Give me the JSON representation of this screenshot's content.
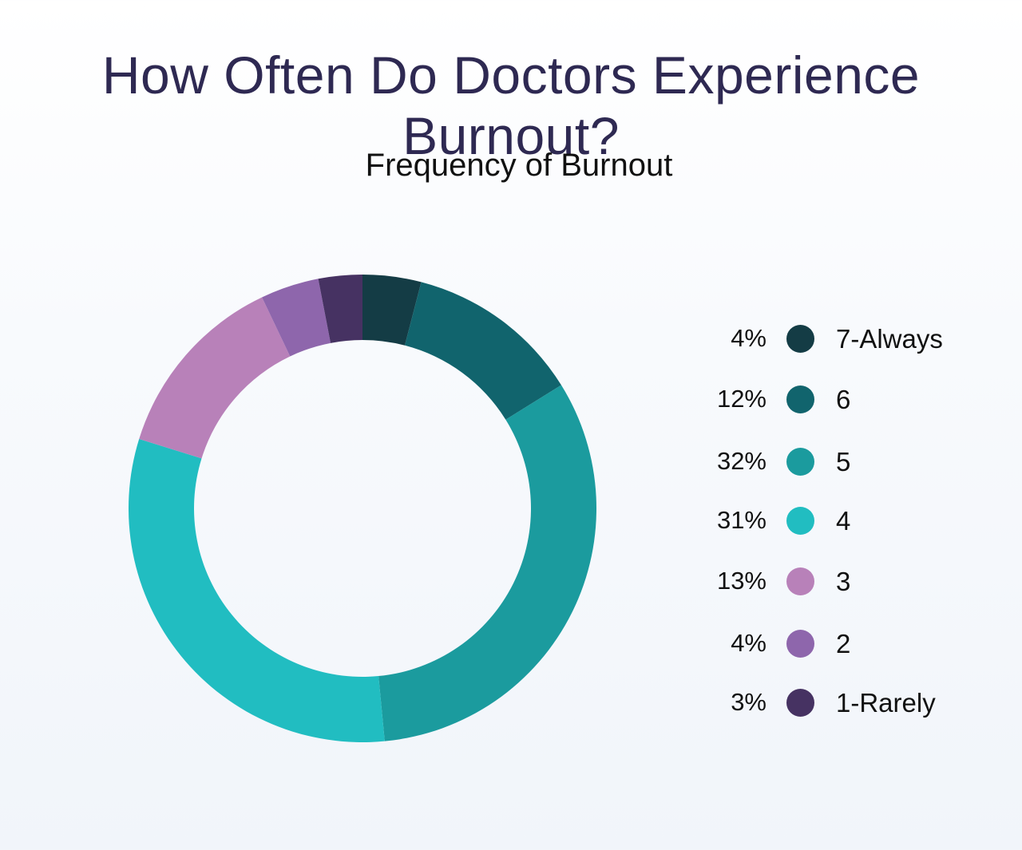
{
  "header": {
    "title": "How Often Do Doctors Experience Burnout?"
  },
  "chart_data": {
    "type": "pie",
    "variant": "donut",
    "title": "Frequency of Burnout",
    "legend_position": "right",
    "slices": [
      {
        "label": "7-Always",
        "value": 4,
        "value_label": "4%",
        "color": "#143c45"
      },
      {
        "label": "6",
        "value": 12,
        "value_label": "12%",
        "color": "#11646d"
      },
      {
        "label": "5",
        "value": 32,
        "value_label": "32%",
        "color": "#1b9b9e"
      },
      {
        "label": "4",
        "value": 31,
        "value_label": "31%",
        "color": "#21bdc1"
      },
      {
        "label": "3",
        "value": 13,
        "value_label": "13%",
        "color": "#b881b9"
      },
      {
        "label": "2",
        "value": 4,
        "value_label": "4%",
        "color": "#8e66ac"
      },
      {
        "label": "1-Rarely",
        "value": 3,
        "value_label": "3%",
        "color": "#463262"
      }
    ]
  }
}
